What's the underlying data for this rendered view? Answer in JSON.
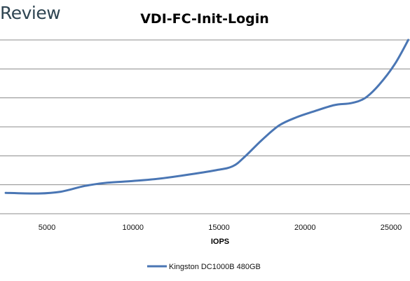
{
  "watermark": "Review",
  "chart_data": {
    "type": "line",
    "title": "VDI-FC-Init-Login",
    "xlabel": "IOPS",
    "ylabel": "",
    "xlim": [
      2500,
      26000
    ],
    "x_ticks": [
      5000,
      10000,
      15000,
      20000,
      25000
    ],
    "grid": true,
    "legend_position": "bottom",
    "series": [
      {
        "name": "Kingston DC1000B 480GB",
        "color": "#4a76b4",
        "points": [
          [
            2600,
            0.72
          ],
          [
            4500,
            0.7
          ],
          [
            5800,
            0.76
          ],
          [
            7200,
            0.96
          ],
          [
            8500,
            1.07
          ],
          [
            10000,
            1.13
          ],
          [
            11500,
            1.21
          ],
          [
            13000,
            1.33
          ],
          [
            14800,
            1.5
          ],
          [
            15800,
            1.64
          ],
          [
            16500,
            1.97
          ],
          [
            17500,
            2.55
          ],
          [
            18500,
            3.05
          ],
          [
            19500,
            3.33
          ],
          [
            20500,
            3.53
          ],
          [
            21700,
            3.75
          ],
          [
            22700,
            3.82
          ],
          [
            23500,
            4.0
          ],
          [
            24300,
            4.45
          ],
          [
            25200,
            5.15
          ],
          [
            26000,
            6.0
          ]
        ]
      }
    ]
  }
}
